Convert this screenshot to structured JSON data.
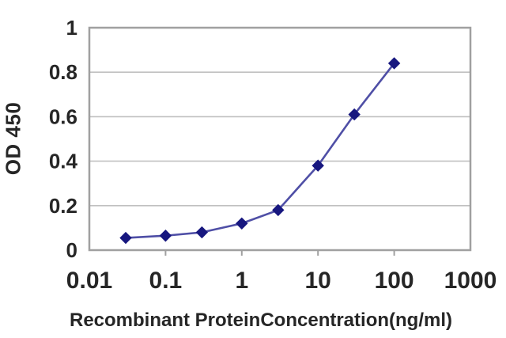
{
  "chart_data": {
    "type": "line",
    "x_scale": "log",
    "xlabel": "Recombinant ProteinConcentration(ng/ml)",
    "ylabel": "OD 450",
    "xlim": [
      0.01,
      1000
    ],
    "ylim": [
      0,
      1
    ],
    "x_tick_values": [
      0.01,
      0.1,
      1,
      10,
      100,
      1000
    ],
    "x_tick_labels": [
      "0.01",
      "0.1",
      "1",
      "10",
      "100",
      "1000"
    ],
    "y_tick_values": [
      0,
      0.2,
      0.4,
      0.6,
      0.8,
      1
    ],
    "y_tick_labels": [
      "0",
      "0.2",
      "0.4",
      "0.6",
      "0.8",
      "1"
    ],
    "grid": "horizontal-only",
    "legend": "none",
    "marker": "diamond",
    "series": [
      {
        "x": [
          0.03,
          0.1,
          0.3,
          1,
          3,
          10,
          30,
          100
        ],
        "y": [
          0.055,
          0.065,
          0.08,
          0.12,
          0.18,
          0.38,
          0.61,
          0.84
        ]
      }
    ],
    "colors": {
      "line": "#4f4fa6",
      "marker": "#17177f",
      "grid": "#c0c0c0",
      "axis_frame": "#a0a0a0",
      "text": "#262626",
      "background": "#ffffff"
    }
  }
}
